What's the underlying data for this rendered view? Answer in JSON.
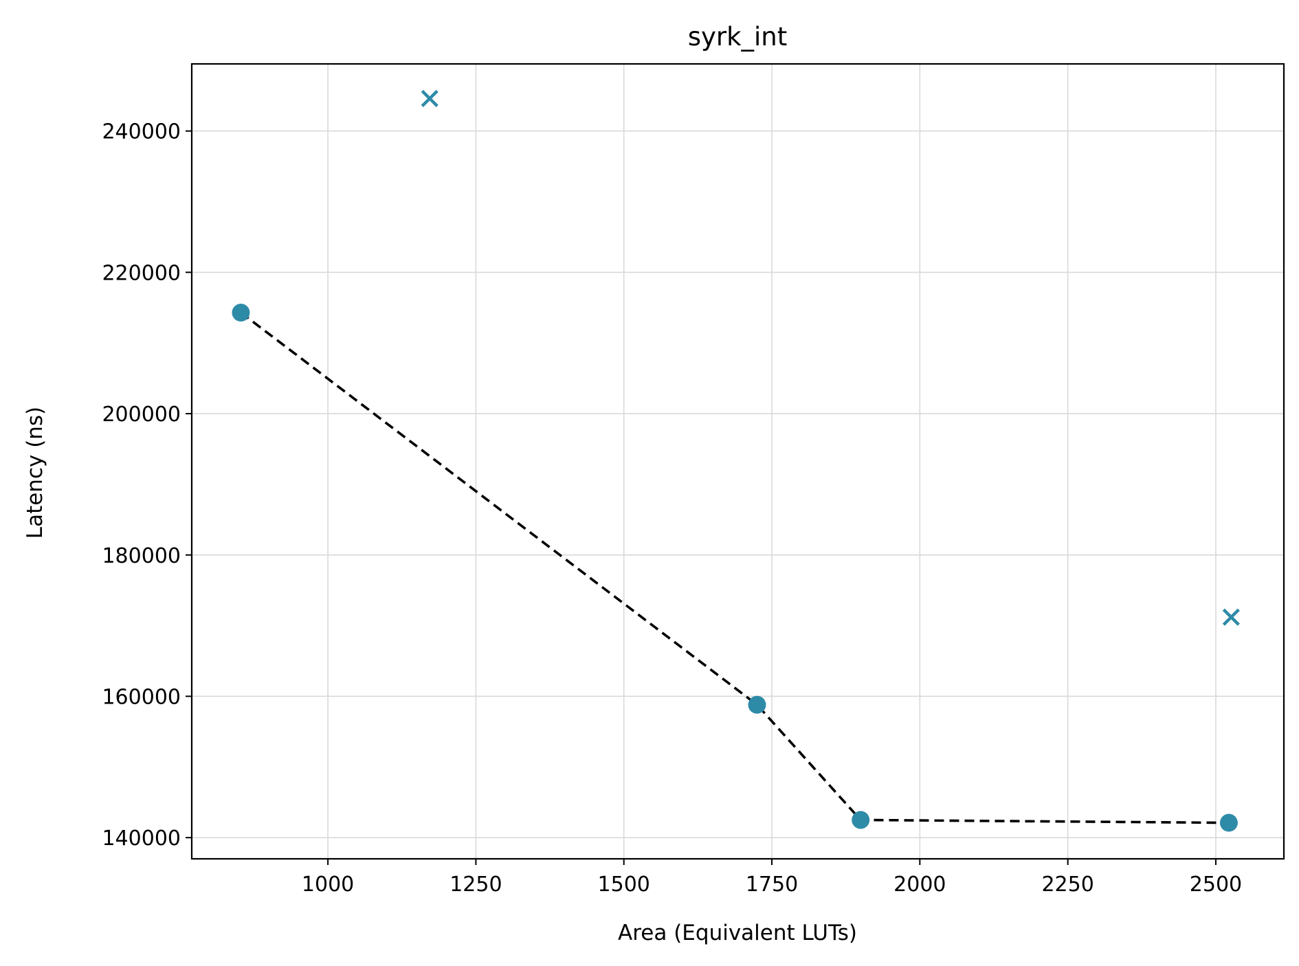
{
  "chart_data": {
    "type": "scatter",
    "title": "syrk_int",
    "xlabel": "Area (Equivalent LUTs)",
    "ylabel": "Latency (ns)",
    "xlim": [
      770,
      2615
    ],
    "ylim": [
      137000,
      249500
    ],
    "xticks": [
      1000,
      1250,
      1500,
      1750,
      2000,
      2250,
      2500
    ],
    "yticks": [
      140000,
      160000,
      180000,
      200000,
      220000,
      240000
    ],
    "grid": true,
    "marker_color": "#2e8ba8",
    "line_color": "#000000",
    "series": [
      {
        "marker": "circle",
        "points": [
          {
            "x": 853,
            "y": 214300
          },
          {
            "x": 1725,
            "y": 158800
          },
          {
            "x": 1900,
            "y": 142500
          },
          {
            "x": 2522,
            "y": 142100
          }
        ]
      },
      {
        "marker": "x",
        "points": [
          {
            "x": 1172,
            "y": 244600
          },
          {
            "x": 2526,
            "y": 171200
          }
        ]
      },
      {
        "marker": "dashed-line",
        "points": [
          {
            "x": 853,
            "y": 214300
          },
          {
            "x": 1725,
            "y": 158800
          },
          {
            "x": 1900,
            "y": 142500
          },
          {
            "x": 2522,
            "y": 142100
          }
        ]
      }
    ]
  }
}
